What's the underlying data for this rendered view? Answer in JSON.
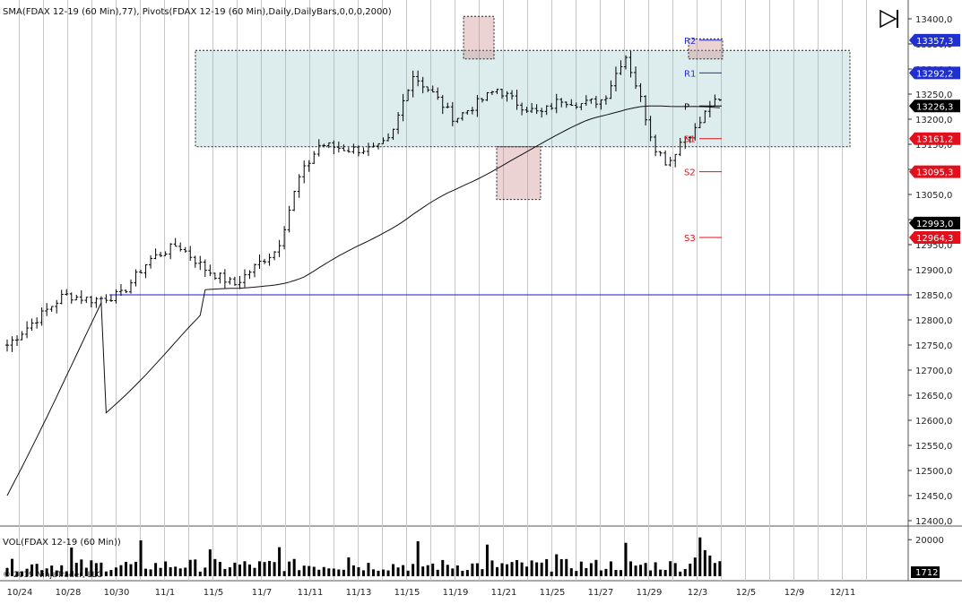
{
  "chart_data": {
    "type": "candlestick",
    "title": "SMA(FDAX 12-19 (60 Min),77), Pivots(FDAX 12-19 (60 Min),Daily,DailyBars,0,0,0,2000)",
    "volume_title": "VOL(FDAX 12-19 (60 Min))",
    "copyright": "© 2019 NinjaTrader, LLC",
    "ylim": [
      12400,
      13400
    ],
    "y_ticks": [
      "13400,0",
      "13350,0",
      "13300,0",
      "13250,0",
      "13200,0",
      "13150,0",
      "13100,0",
      "13050,0",
      "13000,0",
      "12950,0",
      "12900,0",
      "12850,0",
      "12800,0",
      "12750,0",
      "12700,0",
      "12650,0",
      "12600,0",
      "12550,0",
      "12500,0",
      "12450,0",
      "12400,0"
    ],
    "x_labels": [
      "10/24",
      "10/28",
      "10/30",
      "11/1",
      "11/5",
      "11/7",
      "11/11",
      "11/13",
      "11/15",
      "11/19",
      "11/21",
      "11/25",
      "11/27",
      "11/29",
      "12/3",
      "12/5",
      "12/9",
      "12/11"
    ],
    "vol_ylim": [
      0,
      25000
    ],
    "vol_ticks": [
      "20000"
    ],
    "vol_last": "1712",
    "price_key": [
      [
        0,
        12750
      ],
      [
        4,
        12800
      ],
      [
        8,
        12850
      ],
      [
        12,
        12840
      ],
      [
        16,
        12850
      ],
      [
        20,
        12920
      ],
      [
        24,
        12950
      ],
      [
        28,
        12900
      ],
      [
        32,
        12870
      ],
      [
        36,
        12920
      ],
      [
        38,
        12940
      ],
      [
        41,
        13080
      ],
      [
        44,
        13150
      ],
      [
        48,
        13140
      ],
      [
        52,
        13140
      ],
      [
        54,
        13160
      ],
      [
        57,
        13290
      ],
      [
        60,
        13250
      ],
      [
        63,
        13200
      ],
      [
        66,
        13230
      ],
      [
        69,
        13260
      ],
      [
        72,
        13230
      ],
      [
        75,
        13210
      ],
      [
        78,
        13240
      ],
      [
        81,
        13230
      ],
      [
        84,
        13240
      ],
      [
        87,
        13330
      ],
      [
        89,
        13250
      ],
      [
        91,
        13150
      ],
      [
        93,
        13110
      ],
      [
        95,
        13160
      ],
      [
        97,
        13180
      ],
      [
        99,
        13230
      ],
      [
        102,
        13240
      ],
      [
        105,
        13270
      ],
      [
        108,
        13290
      ],
      [
        111,
        13250
      ],
      [
        113,
        13210
      ],
      [
        115,
        13330
      ],
      [
        116,
        13250
      ],
      [
        118,
        13100
      ],
      [
        119,
        13000
      ],
      [
        120,
        12980
      ],
      [
        121,
        12990
      ]
    ],
    "range_box": {
      "from": 13145,
      "to": 13330,
      "start_index": 39,
      "end_index": 166
    },
    "highlight_boxes": [
      {
        "start_index": 92,
        "end_index": 98,
        "from": 13320,
        "to": 13405
      },
      {
        "start_index": 99,
        "end_index": 108,
        "from": 13040,
        "to": 13145
      },
      {
        "start_index": 138,
        "end_index": 145,
        "from": 13320,
        "to": 13360
      }
    ],
    "horizontal_line": {
      "value": 12850,
      "start_index": 22
    },
    "pivots": [
      {
        "name": "R2",
        "value": 13357.3
      },
      {
        "name": "R1",
        "value": 13292.2
      },
      {
        "name": "P",
        "value": 13226.3
      },
      {
        "name": "S1",
        "value": 13161.2
      },
      {
        "name": "S2",
        "value": 13095.3
      },
      {
        "name": "S3",
        "value": 12964.3
      }
    ],
    "price_tags": [
      {
        "label": "13357,3",
        "value": 13357.3,
        "color": "#1f2fd0"
      },
      {
        "label": "13292,2",
        "value": 13292.2,
        "color": "#1f2fd0"
      },
      {
        "label": "13226,3",
        "value": 13226.3,
        "color": "#000000"
      },
      {
        "label": "13161,2",
        "value": 13161.2,
        "color": "#e0101c"
      },
      {
        "label": "13095,3",
        "value": 13095.3,
        "color": "#e0101c"
      },
      {
        "label": "12993,0",
        "value": 12993.0,
        "color": "#000000"
      },
      {
        "label": "12964,3",
        "value": 12964.3,
        "color": "#e0101c"
      }
    ]
  }
}
